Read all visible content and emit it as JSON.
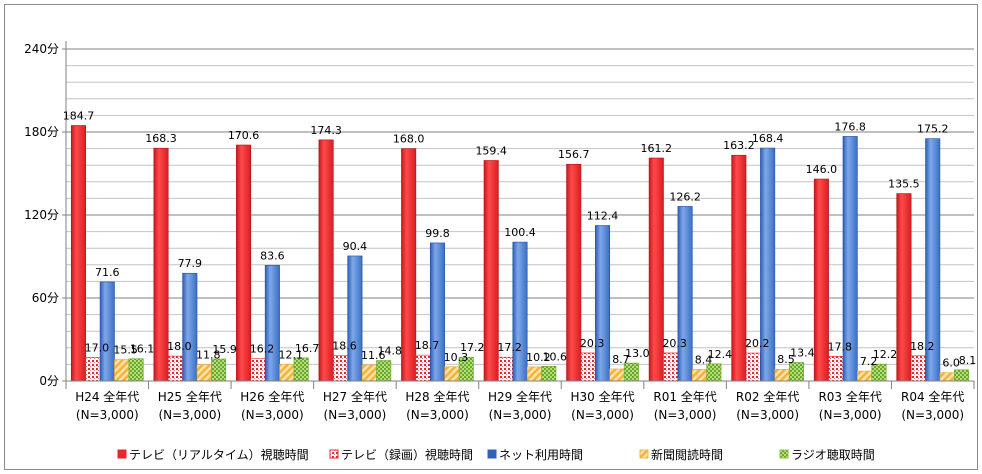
{
  "chart_data": {
    "type": "bar",
    "title": "",
    "xlabel": "",
    "ylabel": "",
    "ylim": [
      0,
      240
    ],
    "y_ticks": [
      "0分",
      "60分",
      "120分",
      "180分",
      "240分"
    ],
    "y_tick_values": [
      0,
      60,
      120,
      180,
      240
    ],
    "grid": true,
    "legend_position": "bottom",
    "categories": [
      [
        "H24 全年代",
        "(N=3,000)"
      ],
      [
        "H25 全年代",
        "(N=3,000)"
      ],
      [
        "H26 全年代",
        "(N=3,000)"
      ],
      [
        "H27 全年代",
        "(N=3,000)"
      ],
      [
        "H28 全年代",
        "(N=3,000)"
      ],
      [
        "H29 全年代",
        "(N=3,000)"
      ],
      [
        "H30 全年代",
        "(N=3,000)"
      ],
      [
        "R01 全年代",
        "(N=3,000)"
      ],
      [
        "R02 全年代",
        "(N=3,000)"
      ],
      [
        "R03 全年代",
        "(N=3,000)"
      ],
      [
        "R04 全年代",
        "(N=3,000)"
      ]
    ],
    "series": [
      {
        "name": "テレビ（リアルタイム）視聴時間",
        "color": "#e8262b",
        "pattern": "solid",
        "values": [
          184.7,
          168.3,
          170.6,
          174.3,
          168.0,
          159.4,
          156.7,
          161.2,
          163.2,
          146.0,
          135.5
        ]
      },
      {
        "name": "テレビ（録画）視聴時間",
        "color": "#e8262b",
        "pattern": "dots",
        "values": [
          17.0,
          18.0,
          16.2,
          18.6,
          18.7,
          17.2,
          20.3,
          20.3,
          20.2,
          17.8,
          18.2
        ]
      },
      {
        "name": "ネット利用時間",
        "color": "#2f62b8",
        "pattern": "solid",
        "values": [
          71.6,
          77.9,
          83.6,
          90.4,
          99.8,
          100.4,
          112.4,
          126.2,
          168.4,
          176.8,
          175.2
        ]
      },
      {
        "name": "新聞閲読時間",
        "color": "#f6c25f",
        "pattern": "stripes",
        "values": [
          15.5,
          11.8,
          12.1,
          11.6,
          10.3,
          10.2,
          8.7,
          8.4,
          8.5,
          7.2,
          6.0
        ]
      },
      {
        "name": "ラジオ聴取時間",
        "color": "#8cc63f",
        "pattern": "checks",
        "values": [
          16.1,
          15.9,
          16.7,
          14.8,
          17.2,
          10.6,
          13.0,
          12.4,
          13.4,
          12.2,
          8.1
        ]
      }
    ],
    "value_labels": [
      [
        "184.7",
        "17.0",
        "71.6",
        "15.5",
        "16.1"
      ],
      [
        "168.3",
        "18.0",
        "77.9",
        "11.8",
        "15.9"
      ],
      [
        "170.6",
        "16.2",
        "83.6",
        "12.1",
        "16.7"
      ],
      [
        "174.3",
        "18.6",
        "90.4",
        "11.6",
        "14.8"
      ],
      [
        "168.0",
        "18.7",
        "99.8",
        "10.3",
        "17.2"
      ],
      [
        "159.4",
        "17.2",
        "100.4",
        "10.2",
        "10.6"
      ],
      [
        "156.7",
        "20.3",
        "112.4",
        "8.7",
        "13.0"
      ],
      [
        "161.2",
        "20.3",
        "126.2",
        "8.4",
        "12.4"
      ],
      [
        "163.2",
        "20.2",
        "168.4",
        "8.5",
        "13.4"
      ],
      [
        "146.0",
        "17.8",
        "176.8",
        "7.2",
        "12.2"
      ],
      [
        "135.5",
        "18.2",
        "175.2",
        "6.0",
        "8.1"
      ]
    ]
  }
}
